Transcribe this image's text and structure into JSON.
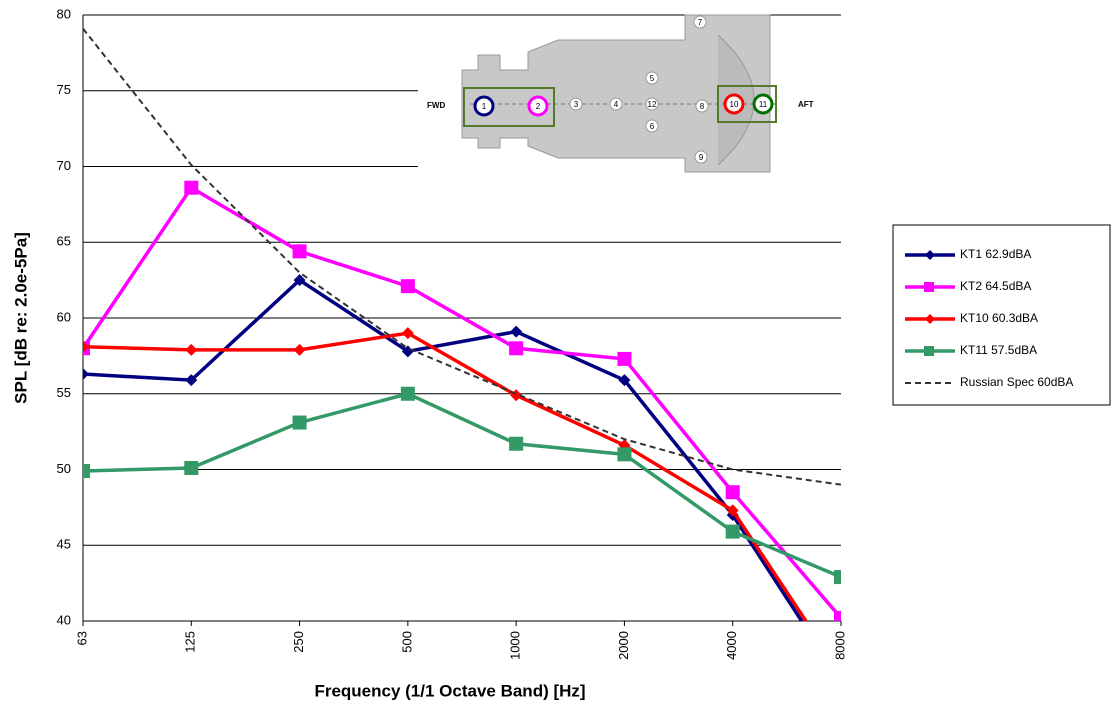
{
  "chart_data": {
    "type": "line",
    "xlabel": "Frequency (1/1 Octave Band) [Hz]",
    "ylabel": "SPL [dB re: 2.0e-5Pa]",
    "categories": [
      "63",
      "125",
      "250",
      "500",
      "1000",
      "2000",
      "4000",
      "8000"
    ],
    "ylim": [
      40,
      80
    ],
    "yticks": [
      40,
      45,
      50,
      55,
      60,
      65,
      70,
      75,
      80
    ],
    "grid": true,
    "series": [
      {
        "name": "KT1 62.9dBA",
        "color": "#000080",
        "marker": "diamond",
        "values": [
          56.3,
          55.9,
          62.5,
          57.8,
          59.1,
          55.9,
          47.0,
          36.0
        ]
      },
      {
        "name": "KT2 64.5dBA",
        "color": "#ff00ff",
        "marker": "square",
        "values": [
          58.0,
          68.6,
          64.4,
          62.1,
          58.0,
          57.3,
          48.5,
          40.2
        ]
      },
      {
        "name": "KT10 60.3dBA",
        "color": "#ff0000",
        "marker": "diamond",
        "values": [
          58.1,
          57.9,
          57.9,
          59.0,
          54.9,
          51.6,
          47.3,
          36.5
        ]
      },
      {
        "name": "KT11 57.5dBA",
        "color": "#339966",
        "marker": "square",
        "values": [
          49.9,
          50.1,
          53.1,
          55.0,
          51.7,
          51.0,
          45.9,
          42.9
        ]
      },
      {
        "name": "Russian Spec 60dBA",
        "color": "#333333",
        "marker": "none",
        "dash": true,
        "values": [
          79.1,
          70.1,
          63.0,
          58.0,
          55.0,
          52.0,
          50.0,
          49.0
        ]
      }
    ],
    "legend": "right",
    "inset": {
      "fwd": "FWD",
      "aft": "AFT",
      "positions": [
        "1",
        "2",
        "3",
        "4",
        "5",
        "12",
        "6",
        "8",
        "10",
        "11",
        "7",
        "9"
      ]
    }
  }
}
